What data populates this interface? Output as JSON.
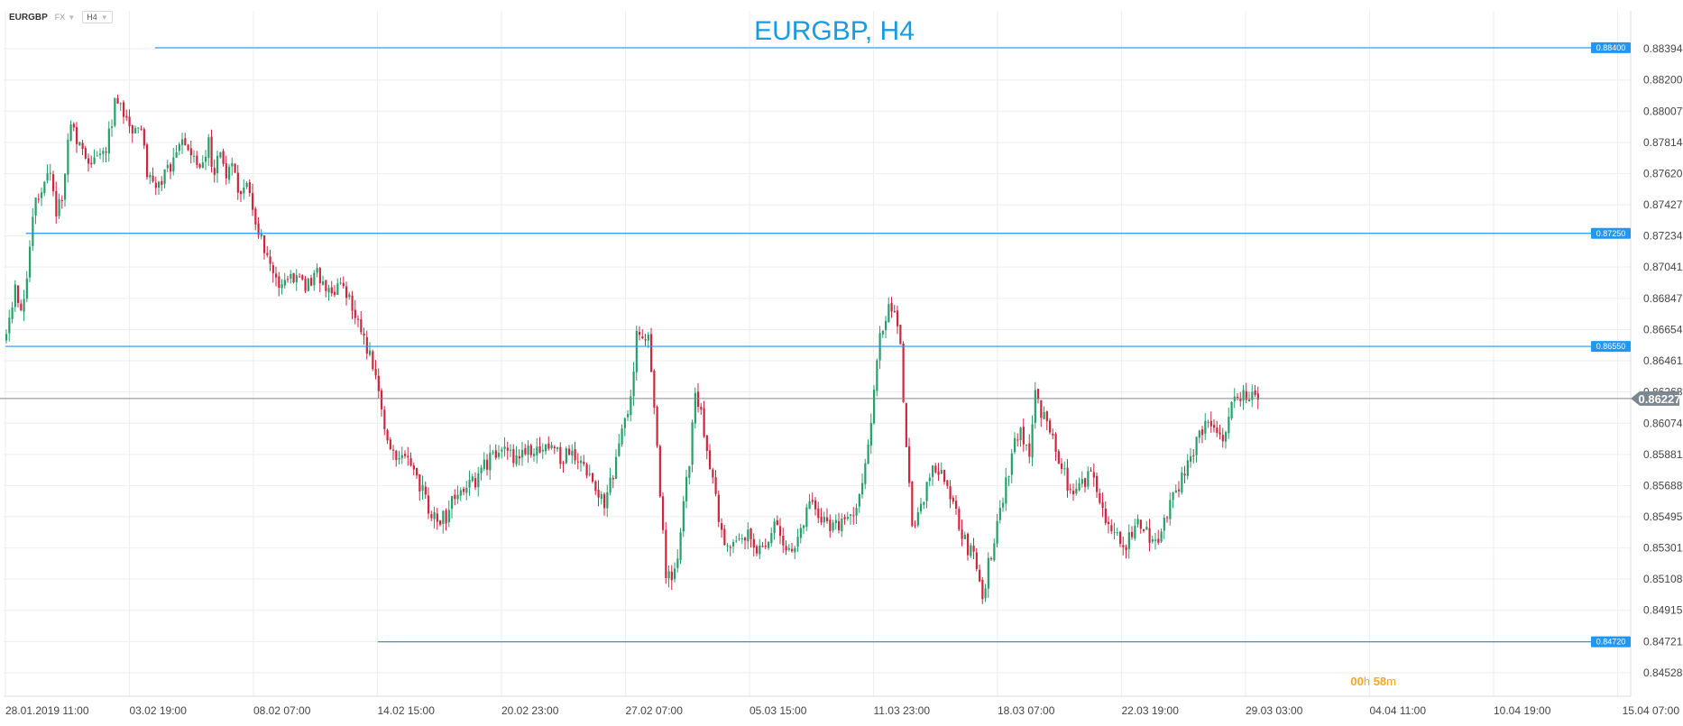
{
  "header": {
    "symbol": "EURGBP",
    "market": "FX",
    "timeframe": "H4"
  },
  "countdown": {
    "hours": "00",
    "h": "h",
    "minutes": "58",
    "m": "m"
  },
  "colors": {
    "bull": "#26a06b",
    "bear": "#d0253f",
    "level": "#2196f3",
    "title": "#1a9be0",
    "current_line": "#888888",
    "grid": "#eeeeee",
    "axis_text": "#444444"
  },
  "chart_data": {
    "type": "candlestick",
    "title": "EURGBP, H4",
    "y_ticks": [
      "0.88394",
      "0.88200",
      "0.88007",
      "0.87814",
      "0.87620",
      "0.87427",
      "0.87234",
      "0.87041",
      "0.86847",
      "0.86654",
      "0.86461",
      "0.86268",
      "0.86074",
      "0.85881",
      "0.85688",
      "0.85495",
      "0.85301",
      "0.85108",
      "0.84915",
      "0.84721",
      "0.84528"
    ],
    "ylim": [
      0.84528,
      0.88394
    ],
    "x_labels": [
      "28.01.2019  11:00",
      "03.02  19:00",
      "08.02  07:00",
      "14.02  15:00",
      "20.02  23:00",
      "27.02  07:00",
      "05.03  15:00",
      "11.03  23:00",
      "18.03  07:00",
      "22.03  19:00",
      "29.03  03:00",
      "04.04  11:00",
      "10.04  19:00",
      "15.04  07:00"
    ],
    "horizontal_levels": [
      {
        "label": "0.88400",
        "value": 0.884,
        "start_bar": 51
      },
      {
        "label": "0.87250",
        "value": 0.8725,
        "start_bar": 7
      },
      {
        "label": "0.86550",
        "value": 0.8655,
        "start_bar": 0
      },
      {
        "label": "0.84720",
        "value": 0.8472,
        "start_bar": 127
      }
    ],
    "current_price": {
      "label": "0.86227",
      "value": 0.86227
    },
    "waypoints": [
      [
        0,
        0.8658
      ],
      [
        3,
        0.869
      ],
      [
        5,
        0.8675
      ],
      [
        7,
        0.87
      ],
      [
        9,
        0.874
      ],
      [
        12,
        0.8755
      ],
      [
        15,
        0.876
      ],
      [
        17,
        0.8735
      ],
      [
        19,
        0.875
      ],
      [
        22,
        0.8795
      ],
      [
        25,
        0.878
      ],
      [
        28,
        0.8765
      ],
      [
        31,
        0.8775
      ],
      [
        34,
        0.8775
      ],
      [
        37,
        0.8805
      ],
      [
        40,
        0.88
      ],
      [
        43,
        0.879
      ],
      [
        46,
        0.879
      ],
      [
        48,
        0.876
      ],
      [
        51,
        0.8755
      ],
      [
        54,
        0.876
      ],
      [
        57,
        0.877
      ],
      [
        60,
        0.878
      ],
      [
        63,
        0.8775
      ],
      [
        66,
        0.8765
      ],
      [
        69,
        0.878
      ],
      [
        71,
        0.8762
      ],
      [
        73,
        0.878
      ],
      [
        75,
        0.8758
      ],
      [
        77,
        0.8765
      ],
      [
        80,
        0.875
      ],
      [
        82,
        0.876
      ],
      [
        84,
        0.8738
      ],
      [
        87,
        0.8722
      ],
      [
        90,
        0.8705
      ],
      [
        93,
        0.869
      ],
      [
        96,
        0.8697
      ],
      [
        99,
        0.8698
      ],
      [
        102,
        0.869
      ],
      [
        106,
        0.87
      ],
      [
        109,
        0.869
      ],
      [
        112,
        0.869
      ],
      [
        115,
        0.869
      ],
      [
        118,
        0.868
      ],
      [
        121,
        0.8668
      ],
      [
        124,
        0.8648
      ],
      [
        127,
        0.8625
      ],
      [
        130,
        0.86
      ],
      [
        133,
        0.8582
      ],
      [
        137,
        0.8585
      ],
      [
        140,
        0.8575
      ],
      [
        143,
        0.856
      ],
      [
        147,
        0.8545
      ],
      [
        150,
        0.855
      ],
      [
        153,
        0.8562
      ],
      [
        157,
        0.857
      ],
      [
        160,
        0.8572
      ],
      [
        163,
        0.858
      ],
      [
        167,
        0.859
      ],
      [
        171,
        0.859
      ],
      [
        175,
        0.8585
      ],
      [
        179,
        0.859
      ],
      [
        183,
        0.8592
      ],
      [
        186,
        0.8598
      ],
      [
        189,
        0.8585
      ],
      [
        192,
        0.8588
      ],
      [
        196,
        0.858
      ],
      [
        199,
        0.8575
      ],
      [
        202,
        0.8562
      ],
      [
        204,
        0.8558
      ],
      [
        207,
        0.8575
      ],
      [
        210,
        0.86
      ],
      [
        213,
        0.8625
      ],
      [
        215,
        0.866
      ],
      [
        217,
        0.8662
      ],
      [
        219,
        0.866
      ],
      [
        221,
        0.8615
      ],
      [
        223,
        0.8565
      ],
      [
        225,
        0.8515
      ],
      [
        227,
        0.8515
      ],
      [
        229,
        0.8525
      ],
      [
        231,
        0.8555
      ],
      [
        233,
        0.8585
      ],
      [
        235,
        0.8625
      ],
      [
        237,
        0.8615
      ],
      [
        239,
        0.859
      ],
      [
        241,
        0.8575
      ],
      [
        243,
        0.855
      ],
      [
        245,
        0.853
      ],
      [
        247,
        0.853
      ],
      [
        250,
        0.8535
      ],
      [
        253,
        0.854
      ],
      [
        256,
        0.853
      ],
      [
        259,
        0.8535
      ],
      [
        262,
        0.8545
      ],
      [
        265,
        0.8535
      ],
      [
        268,
        0.8525
      ],
      [
        271,
        0.854
      ],
      [
        274,
        0.856
      ],
      [
        277,
        0.855
      ],
      [
        280,
        0.8545
      ],
      [
        284,
        0.8545
      ],
      [
        288,
        0.855
      ],
      [
        291,
        0.856
      ],
      [
        294,
        0.859
      ],
      [
        296,
        0.863
      ],
      [
        298,
        0.866
      ],
      [
        301,
        0.868
      ],
      [
        303,
        0.868
      ],
      [
        305,
        0.866
      ],
      [
        307,
        0.859
      ],
      [
        309,
        0.8545
      ],
      [
        311,
        0.855
      ],
      [
        314,
        0.857
      ],
      [
        317,
        0.858
      ],
      [
        320,
        0.8575
      ],
      [
        323,
        0.856
      ],
      [
        325,
        0.8545
      ],
      [
        328,
        0.853
      ],
      [
        330,
        0.8525
      ],
      [
        332,
        0.851
      ],
      [
        333,
        0.8495
      ],
      [
        335,
        0.852
      ],
      [
        338,
        0.8545
      ],
      [
        341,
        0.857
      ],
      [
        344,
        0.8595
      ],
      [
        346,
        0.86
      ],
      [
        349,
        0.859
      ],
      [
        351,
        0.8625
      ],
      [
        353,
        0.8615
      ],
      [
        356,
        0.86
      ],
      [
        358,
        0.859
      ],
      [
        361,
        0.8575
      ],
      [
        364,
        0.856
      ],
      [
        367,
        0.857
      ],
      [
        370,
        0.8575
      ],
      [
        373,
        0.856
      ],
      [
        376,
        0.854
      ],
      [
        379,
        0.8535
      ],
      [
        382,
        0.853
      ],
      [
        385,
        0.8545
      ],
      [
        388,
        0.854
      ],
      [
        391,
        0.8535
      ],
      [
        394,
        0.854
      ],
      [
        397,
        0.8555
      ],
      [
        400,
        0.857
      ],
      [
        403,
        0.858
      ],
      [
        405,
        0.859
      ],
      [
        408,
        0.8605
      ],
      [
        410,
        0.861
      ],
      [
        412,
        0.8605
      ],
      [
        415,
        0.86
      ],
      [
        418,
        0.862
      ],
      [
        421,
        0.8625
      ],
      [
        424,
        0.8625
      ],
      [
        427,
        0.8618
      ]
    ],
    "bar_count": 428,
    "seed": 20190128
  }
}
